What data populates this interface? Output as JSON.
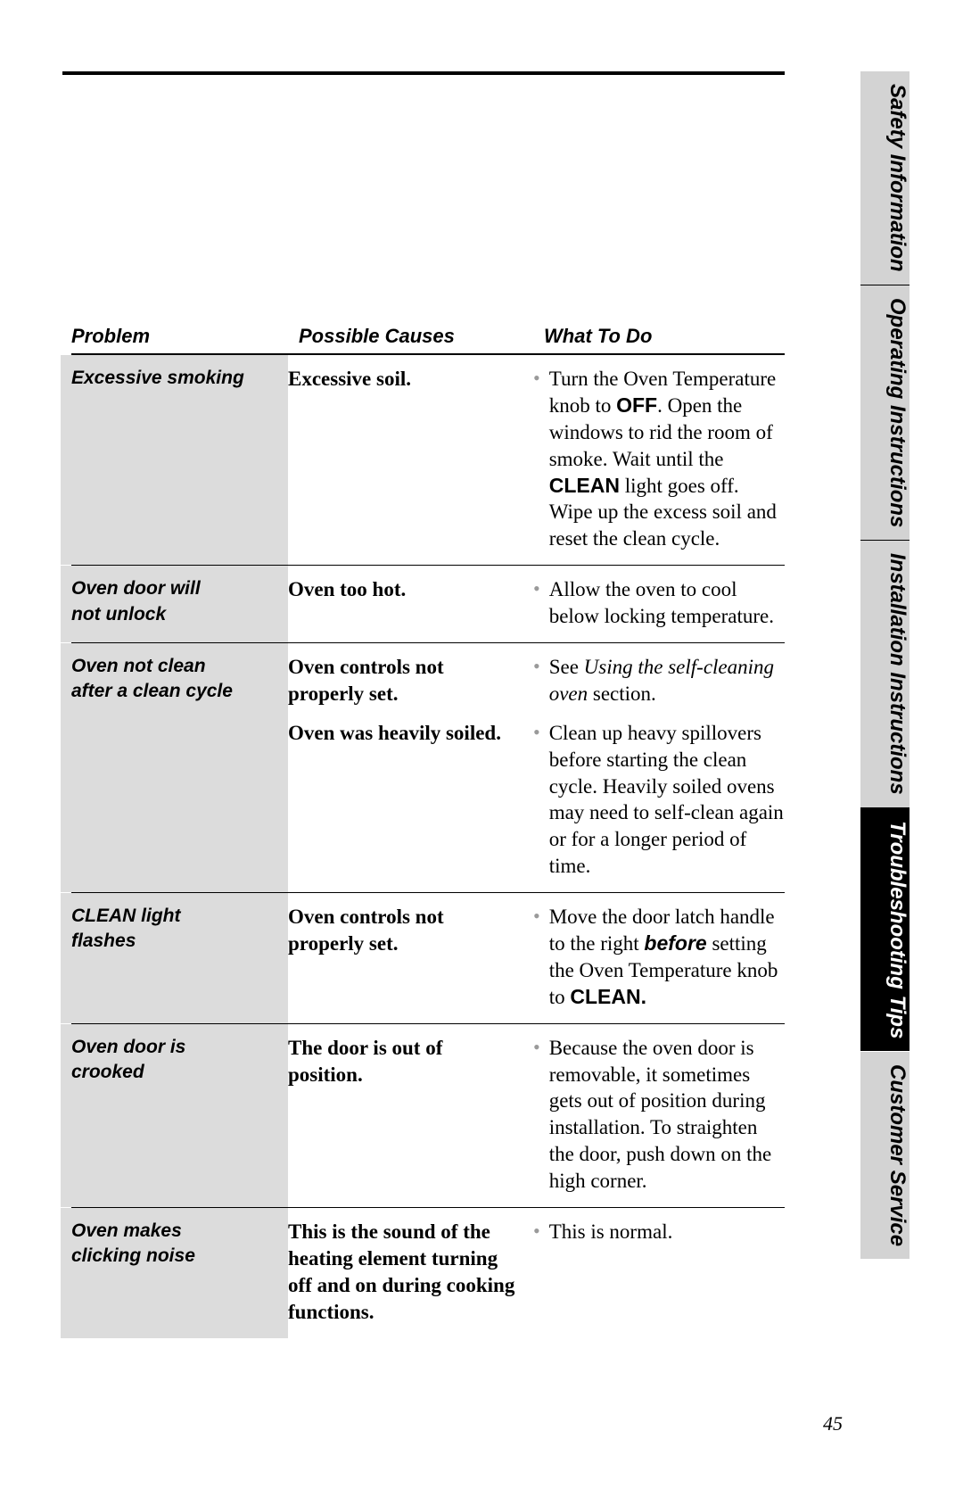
{
  "sidetabs": {
    "safety": {
      "label": "Safety Information"
    },
    "operating": {
      "label": "Operating Instructions"
    },
    "install": {
      "label": "Installation Instructions"
    },
    "trouble": {
      "label": "Troubleshooting Tips"
    },
    "customer": {
      "label": "Customer Service"
    }
  },
  "headers": {
    "problem": "Problem",
    "causes": "Possible Causes",
    "todo": "What To Do"
  },
  "rows": {
    "r1": {
      "problem": "Excessive smoking",
      "cause": "Excessive soil.",
      "todo_pre": "Turn the Oven Temperature knob to ",
      "todo_off": "OFF",
      "todo_mid": ". Open the windows to rid the room of smoke. Wait until the ",
      "todo_clean": "CLEAN",
      "todo_post": " light goes off. Wipe up the excess soil and reset the clean cycle."
    },
    "r2": {
      "problem_l1": "Oven door will",
      "problem_l2": "not unlock",
      "cause": "Oven too hot.",
      "todo": "Allow the oven to cool below locking temperature."
    },
    "r3": {
      "problem_l1": "Oven not clean",
      "problem_l2": "after a clean cycle",
      "cause_a": "Oven controls not properly set.",
      "todo_a_pre": "See ",
      "todo_a_it": "Using the self-cleaning oven",
      "todo_a_post": " section.",
      "cause_b": "Oven was heavily soiled.",
      "todo_b": "Clean up heavy spillovers before starting the clean cycle. Heavily soiled ovens may need to self-clean again or for a longer period of time."
    },
    "r4": {
      "problem_l1": "CLEAN light",
      "problem_l2": "flashes",
      "cause": "Oven controls not properly set.",
      "todo_pre": "Move the door latch handle to the right ",
      "todo_before": "before",
      "todo_mid": " setting the Oven Temperature knob to ",
      "todo_clean": "CLEAN."
    },
    "r5": {
      "problem_l1": "Oven door is",
      "problem_l2": "crooked",
      "cause": "The door is out of position.",
      "todo": "Because the oven door is removable, it sometimes gets out of position during installation. To straighten the door, push down on the high corner."
    },
    "r6": {
      "problem_l1": "Oven makes",
      "problem_l2": "clicking noise",
      "cause": "This is the sound of the heating element turning off and on during cooking functions.",
      "todo": "This is normal."
    }
  },
  "page_number": "45"
}
